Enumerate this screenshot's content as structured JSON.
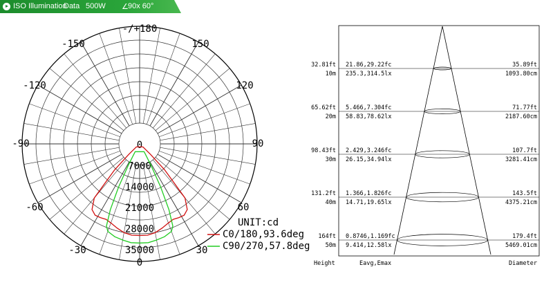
{
  "header": {
    "title": "ISO Illumination",
    "subtitle": "Data",
    "power": "500W",
    "beam": "90x 60°",
    "icon": "play-circle-icon"
  },
  "chart_data": [
    {
      "type": "polar",
      "unit_label": "UNIT:cd",
      "angle_labels": [
        "-/+180",
        "150",
        "120",
        "90",
        "60",
        "30",
        "0",
        "-30",
        "-60",
        "-90",
        "-120",
        "-150"
      ],
      "radial_ticks": [
        "0",
        "7000",
        "14000",
        "21000",
        "28000",
        "35000"
      ],
      "rmax": 35000,
      "series": [
        {
          "name": "C0/180,93.6deg",
          "color": "#d01010",
          "angles": [
            -48,
            -46,
            -44,
            -40,
            -36,
            -32,
            -28,
            -24,
            -20,
            -15,
            -10,
            -5,
            0,
            5,
            10,
            15,
            20,
            24,
            28,
            32,
            36,
            40,
            44,
            46,
            48
          ],
          "values": [
            1500,
            5000,
            12000,
            23500,
            27000,
            28000,
            27800,
            27500,
            28000,
            29000,
            30000,
            30500,
            30500,
            30500,
            30000,
            29000,
            28000,
            27500,
            27800,
            28000,
            27000,
            23500,
            12000,
            5000,
            1500
          ]
        },
        {
          "name": "C90/270,57.8deg",
          "color": "#22cc22",
          "angles": [
            -30,
            -28,
            -26,
            -24,
            -22,
            -20,
            -15,
            -10,
            -5,
            0,
            5,
            10,
            15,
            20,
            22,
            24,
            26,
            28,
            30
          ],
          "values": [
            3000,
            8000,
            16000,
            24000,
            29500,
            31000,
            32000,
            32500,
            33000,
            33000,
            33000,
            32500,
            32000,
            31000,
            29500,
            24000,
            16000,
            8000,
            3000
          ]
        }
      ]
    },
    {
      "type": "table",
      "columns": [
        "Height",
        "Eavg,Emax",
        "Diameter"
      ],
      "rows": [
        {
          "height_ft": "32.81ft",
          "height_m": "10m",
          "fc": "21.86,29.22fc",
          "lx": "235.3,314.5lx",
          "dia_ft": "35.89ft",
          "dia_cm": "1093.80cm"
        },
        {
          "height_ft": "65.62ft",
          "height_m": "20m",
          "fc": "5.466,7.304fc",
          "lx": "58.83,78.62lx",
          "dia_ft": "71.77ft",
          "dia_cm": "2187.60cm"
        },
        {
          "height_ft": "98.43ft",
          "height_m": "30m",
          "fc": "2.429,3.246fc",
          "lx": "26.15,34.94lx",
          "dia_ft": "107.7ft",
          "dia_cm": "3281.41cm"
        },
        {
          "height_ft": "131.2ft",
          "height_m": "40m",
          "fc": "1.366,1.826fc",
          "lx": "14.71,19.65lx",
          "dia_ft": "143.5ft",
          "dia_cm": "4375.21cm"
        },
        {
          "height_ft": "164ft",
          "height_m": "50m",
          "fc": "0.8746,1.169fc",
          "lx": "9.414,12.58lx",
          "dia_ft": "179.4ft",
          "dia_cm": "5469.01cm"
        }
      ]
    }
  ]
}
